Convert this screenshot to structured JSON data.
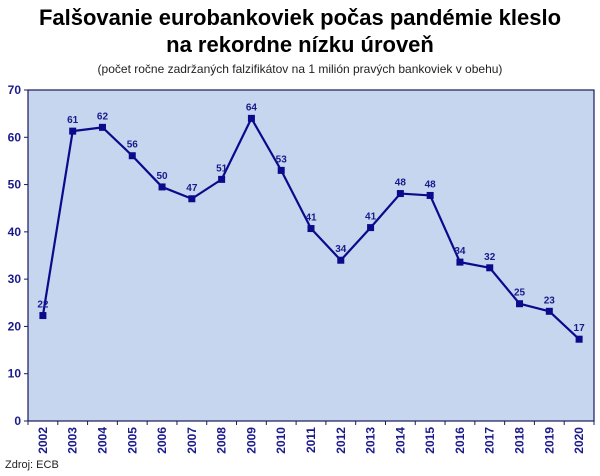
{
  "header": {
    "title_line1": "Falšovanie eurobankoviek počas pandémie kleslo",
    "title_line2": "na rekordne nízku úroveň",
    "subtitle": "(počet ročne zadržaných falzifikátov na 1 milión pravých bankoviek v obehu)"
  },
  "footer": {
    "source": "Zdroj: ECB"
  },
  "chart_data": {
    "type": "line",
    "title": "Falšovanie eurobankoviek počas pandémie kleslo na rekordne nízku úroveň",
    "subtitle": "(počet ročne zadržaných falzifikátov na 1 milión pravých bankoviek v obehu)",
    "xlabel": "",
    "ylabel": "",
    "categories": [
      "2002",
      "2003",
      "2004",
      "2005",
      "2006",
      "2007",
      "2008",
      "2009",
      "2010",
      "2011",
      "2012",
      "2013",
      "2014",
      "2015",
      "2016",
      "2017",
      "2018",
      "2019",
      "2020"
    ],
    "values": [
      22.3,
      61.3,
      62.1,
      56.1,
      49.5,
      47.0,
      51.1,
      64.0,
      53.0,
      40.7,
      34.0,
      40.9,
      48.1,
      47.7,
      33.6,
      32.4,
      24.8,
      23.2,
      17.3
    ],
    "labels": [
      "22",
      "61",
      "62",
      "56",
      "50",
      "47",
      "51",
      "64",
      "53",
      "41",
      "34",
      "41",
      "48",
      "48",
      "34",
      "32",
      "25",
      "23",
      "17"
    ],
    "ylim": [
      0,
      70
    ],
    "yticks": [
      0,
      10,
      20,
      30,
      40,
      50,
      60,
      70
    ],
    "grid": false,
    "legend": "none",
    "colors": {
      "line": "#0a0a8c",
      "plot_bg": "#c6d6ee",
      "frame": "#1a1a5a",
      "text": "#1a1a8c"
    }
  }
}
